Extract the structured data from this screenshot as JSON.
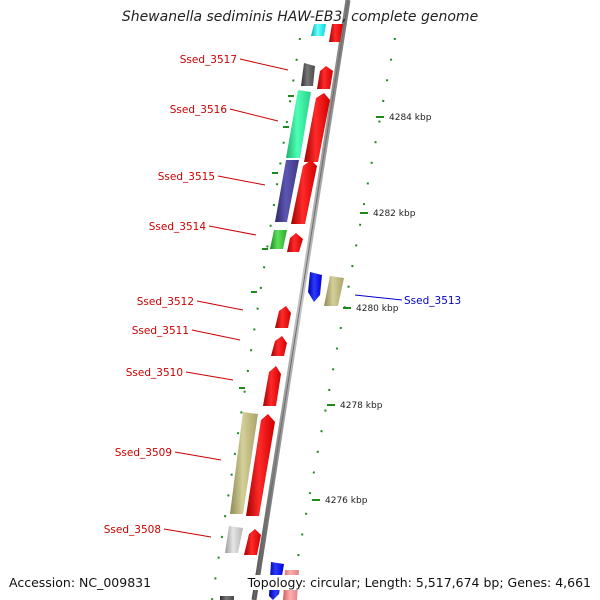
{
  "title": "Shewanella sediminis HAW-EB3, complete genome",
  "accession_text": "Accession: NC_009831",
  "summary_text": "Topology: circular; Length: 5,517,674 bp; Genes: 4,661",
  "ruler": [
    "4284 kbp",
    "4282 kbp",
    "4280 kbp",
    "4278 kbp",
    "4276 kbp"
  ],
  "colors": {
    "forward": "#ff0000",
    "reverse": "#0000ff",
    "label_left": "#cc0000",
    "label_right": "#0000cc",
    "tick": "#1e8a1e"
  },
  "genes_left": [
    {
      "id": "Ssed_3517"
    },
    {
      "id": "Ssed_3516"
    },
    {
      "id": "Ssed_3515"
    },
    {
      "id": "Ssed_3514"
    },
    {
      "id": "Ssed_3512"
    },
    {
      "id": "Ssed_3511"
    },
    {
      "id": "Ssed_3510"
    },
    {
      "id": "Ssed_3509"
    },
    {
      "id": "Ssed_3508"
    }
  ],
  "genes_right": [
    {
      "id": "Ssed_3513"
    }
  ]
}
